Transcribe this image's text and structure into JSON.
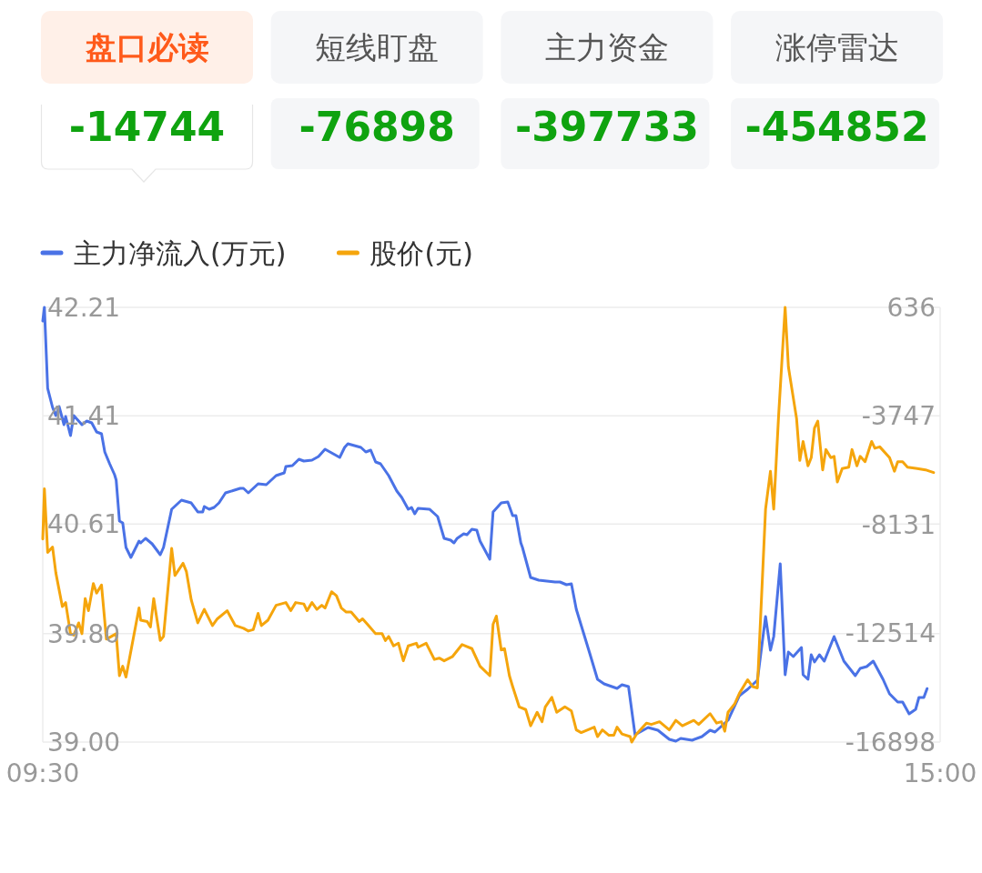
{
  "chart_data": [
    {
      "type": "other",
      "categories": [
        "盘口必读",
        "短线盯盘",
        "主力资金",
        "涨停雷达"
      ],
      "annotations": [
        "-14744",
        "-76898",
        "-397733",
        "-454852"
      ]
    },
    {
      "type": "line",
      "legend": "top left",
      "grid": "y",
      "marker": "none",
      "line_style": "solid",
      "xlim": [
        9.5,
        15.0
      ],
      "xticks": [
        {
          "value": 9.5,
          "label": "09:30"
        },
        {
          "value": 15.0,
          "label": "15:00"
        }
      ],
      "ylim": [
        39.0,
        42.21
      ],
      "yticks": [
        {
          "value": 39.0,
          "label": "39.00"
        },
        {
          "value": 39.8,
          "label": "39.80"
        },
        40.61,
        41.41,
        42.21
      ],
      "y2lim": [
        -16898,
        636
      ],
      "y2ticks": [
        -16898,
        -12514,
        -8131,
        -3747,
        636
      ],
      "series": [
        {
          "name": "主力净流入(万元)",
          "color": "#4a72e6",
          "axis": "y2",
          "x": [
            9.5,
            9.51,
            9.53,
            9.56,
            9.58,
            9.6,
            9.63,
            9.64,
            9.67,
            9.69,
            9.74,
            9.77,
            9.8,
            9.83,
            9.86,
            9.88,
            9.91,
            9.94,
            9.95,
            9.97,
            9.99,
            10.01,
            10.04,
            10.09,
            10.1,
            10.13,
            10.17,
            10.22,
            10.24,
            10.29,
            10.35,
            10.41,
            10.45,
            10.48,
            10.49,
            10.52,
            10.55,
            10.58,
            10.62,
            10.71,
            10.73,
            10.76,
            10.82,
            10.87,
            10.93,
            10.98,
            10.99,
            11.03,
            11.07,
            11.1,
            11.15,
            11.19,
            11.23,
            11.27,
            11.32,
            11.35,
            11.37,
            11.45,
            11.48,
            11.51,
            11.54,
            11.57,
            11.62,
            11.67,
            11.7,
            11.74,
            11.76,
            11.78,
            11.8,
            11.87,
            11.92,
            11.96,
            12.0,
            12.02,
            12.04,
            12.08,
            12.1,
            12.13,
            12.16,
            12.18,
            12.24,
            12.26,
            12.31,
            12.35,
            12.38,
            12.4,
            12.43,
            12.44,
            12.49,
            12.54,
            12.64,
            12.67,
            12.71,
            12.74,
            12.77,
            12.85,
            12.9,
            12.94,
            13.02,
            13.05,
            13.09,
            13.13,
            13.21,
            13.27,
            13.34,
            13.38,
            13.41,
            13.48,
            13.54,
            13.59,
            13.62,
            13.7,
            13.77,
            13.82,
            13.88,
            13.93,
            13.96,
            13.98,
            14.02,
            14.05,
            14.07,
            14.1,
            14.15,
            14.16,
            14.19,
            14.21,
            14.23,
            14.26,
            14.29,
            14.35,
            14.41,
            14.48,
            14.51,
            14.55,
            14.59,
            14.65,
            14.69,
            14.74,
            14.77,
            14.81,
            14.85,
            14.87,
            14.9,
            14.92
          ],
          "values": [
            86,
            636,
            -2629,
            -3399,
            -3729,
            -3362,
            -4096,
            -3766,
            -4536,
            -3729,
            -4096,
            -3949,
            -4023,
            -4389,
            -4463,
            -5196,
            -5673,
            -6113,
            -6334,
            -7984,
            -8058,
            -9048,
            -9452,
            -8791,
            -8865,
            -8681,
            -8901,
            -9342,
            -9048,
            -7507,
            -7141,
            -7251,
            -7617,
            -7617,
            -7397,
            -7507,
            -7434,
            -7251,
            -6847,
            -6664,
            -6664,
            -6847,
            -6480,
            -6517,
            -6150,
            -6040,
            -5783,
            -5747,
            -5490,
            -5563,
            -5527,
            -5380,
            -5086,
            -5233,
            -5417,
            -5013,
            -4866,
            -5013,
            -5196,
            -5123,
            -5600,
            -5673,
            -6150,
            -6773,
            -7030,
            -7507,
            -7434,
            -7691,
            -7471,
            -7507,
            -7801,
            -8681,
            -8755,
            -8865,
            -8681,
            -8498,
            -8535,
            -8314,
            -8351,
            -8791,
            -9525,
            -7617,
            -7251,
            -7214,
            -7764,
            -7764,
            -8865,
            -9048,
            -10259,
            -10369,
            -10442,
            -10442,
            -10552,
            -10515,
            -11542,
            -13267,
            -14367,
            -14550,
            -14734,
            -14587,
            -14660,
            -16605,
            -16311,
            -16421,
            -16788,
            -16860,
            -16751,
            -16825,
            -16678,
            -16421,
            -16494,
            -16018,
            -15027,
            -14770,
            -14404,
            -11836,
            -13193,
            -12643,
            -9708,
            -14184,
            -13267,
            -13450,
            -13083,
            -14184,
            -14367,
            -13377,
            -13670,
            -13377,
            -13633,
            -12643,
            -13633,
            -14220,
            -13927,
            -13853,
            -13633,
            -14367,
            -14954,
            -15284,
            -15284,
            -15761,
            -15577,
            -15100,
            -15100,
            -14744
          ]
        },
        {
          "name": "股价(元)",
          "color": "#f5a50c",
          "x": [
            9.5,
            9.51,
            9.53,
            9.56,
            9.58,
            9.62,
            9.64,
            9.67,
            9.69,
            9.72,
            9.74,
            9.76,
            9.78,
            9.81,
            9.83,
            9.86,
            9.89,
            9.95,
            9.97,
            9.99,
            10.01,
            10.09,
            10.1,
            10.14,
            10.16,
            10.18,
            10.22,
            10.24,
            10.29,
            10.31,
            10.36,
            10.38,
            10.41,
            10.45,
            10.49,
            10.54,
            10.57,
            10.63,
            10.68,
            10.73,
            10.76,
            10.79,
            10.82,
            10.84,
            10.88,
            10.93,
            10.99,
            11.02,
            11.05,
            11.1,
            11.12,
            11.15,
            11.18,
            11.21,
            11.23,
            11.27,
            11.3,
            11.33,
            11.36,
            11.39,
            11.44,
            11.46,
            11.49,
            11.54,
            11.58,
            11.6,
            11.62,
            11.65,
            11.68,
            11.71,
            11.74,
            11.79,
            11.8,
            11.85,
            11.9,
            11.93,
            11.96,
            12.01,
            12.07,
            12.13,
            12.18,
            12.24,
            12.26,
            12.28,
            12.31,
            12.33,
            12.36,
            12.38,
            12.42,
            12.46,
            12.49,
            12.53,
            12.56,
            12.58,
            12.62,
            12.65,
            12.7,
            12.74,
            12.77,
            12.8,
            12.88,
            12.9,
            12.93,
            12.97,
            13.0,
            13.02,
            13.05,
            13.1,
            13.11,
            13.14,
            13.2,
            13.23,
            13.28,
            13.34,
            13.38,
            13.42,
            13.49,
            13.52,
            13.59,
            13.63,
            13.66,
            13.68,
            13.7,
            13.74,
            13.77,
            13.82,
            13.85,
            13.88,
            13.93,
            13.96,
            13.98,
            14.01,
            14.05,
            14.07,
            14.12,
            14.14,
            14.16,
            14.19,
            14.21,
            14.23,
            14.25,
            14.28,
            14.3,
            14.33,
            14.35,
            14.37,
            14.4,
            14.44,
            14.46,
            14.49,
            14.51,
            14.54,
            14.58,
            14.6,
            14.63,
            14.69,
            14.72,
            14.74,
            14.77,
            14.8,
            14.86,
            14.91,
            14.96
          ],
          "values": [
            40.5,
            40.87,
            40.4,
            40.44,
            40.25,
            40.0,
            40.03,
            39.8,
            39.79,
            39.88,
            39.8,
            40.06,
            39.97,
            40.17,
            40.1,
            40.16,
            39.76,
            39.8,
            39.49,
            39.56,
            39.48,
            39.99,
            39.9,
            39.89,
            39.85,
            40.06,
            39.75,
            39.78,
            40.43,
            40.23,
            40.32,
            40.26,
            40.05,
            39.88,
            39.98,
            39.86,
            39.91,
            39.97,
            39.86,
            39.84,
            39.82,
            39.83,
            39.95,
            39.86,
            39.9,
            40.01,
            40.03,
            39.97,
            40.03,
            40.02,
            39.97,
            40.03,
            39.98,
            40.01,
            39.99,
            40.11,
            40.08,
            39.99,
            39.96,
            39.96,
            39.89,
            39.91,
            39.87,
            39.8,
            39.8,
            39.75,
            39.78,
            39.71,
            39.73,
            39.6,
            39.71,
            39.73,
            39.7,
            39.73,
            39.61,
            39.62,
            39.6,
            39.63,
            39.72,
            39.69,
            39.56,
            39.49,
            39.87,
            39.93,
            39.68,
            39.69,
            39.49,
            39.41,
            39.26,
            39.24,
            39.12,
            39.22,
            39.15,
            39.26,
            39.33,
            39.22,
            39.26,
            39.23,
            39.09,
            39.07,
            39.11,
            39.04,
            39.09,
            39.05,
            39.05,
            39.11,
            39.06,
            39.04,
            39.0,
            39.06,
            39.14,
            39.13,
            39.15,
            39.09,
            39.16,
            39.12,
            39.16,
            39.13,
            39.21,
            39.14,
            39.15,
            39.08,
            39.22,
            39.28,
            39.36,
            39.46,
            39.41,
            39.4,
            40.72,
            41.0,
            40.72,
            41.41,
            42.21,
            41.77,
            41.39,
            41.08,
            41.22,
            41.04,
            41.1,
            41.32,
            41.37,
            41.01,
            41.16,
            41.1,
            41.11,
            40.92,
            41.02,
            41.03,
            41.16,
            41.04,
            41.11,
            41.07,
            41.22,
            41.17,
            41.18,
            41.1,
            41.0,
            41.07,
            41.07,
            41.03,
            41.02,
            41.01,
            40.99
          ]
        }
      ]
    }
  ]
}
